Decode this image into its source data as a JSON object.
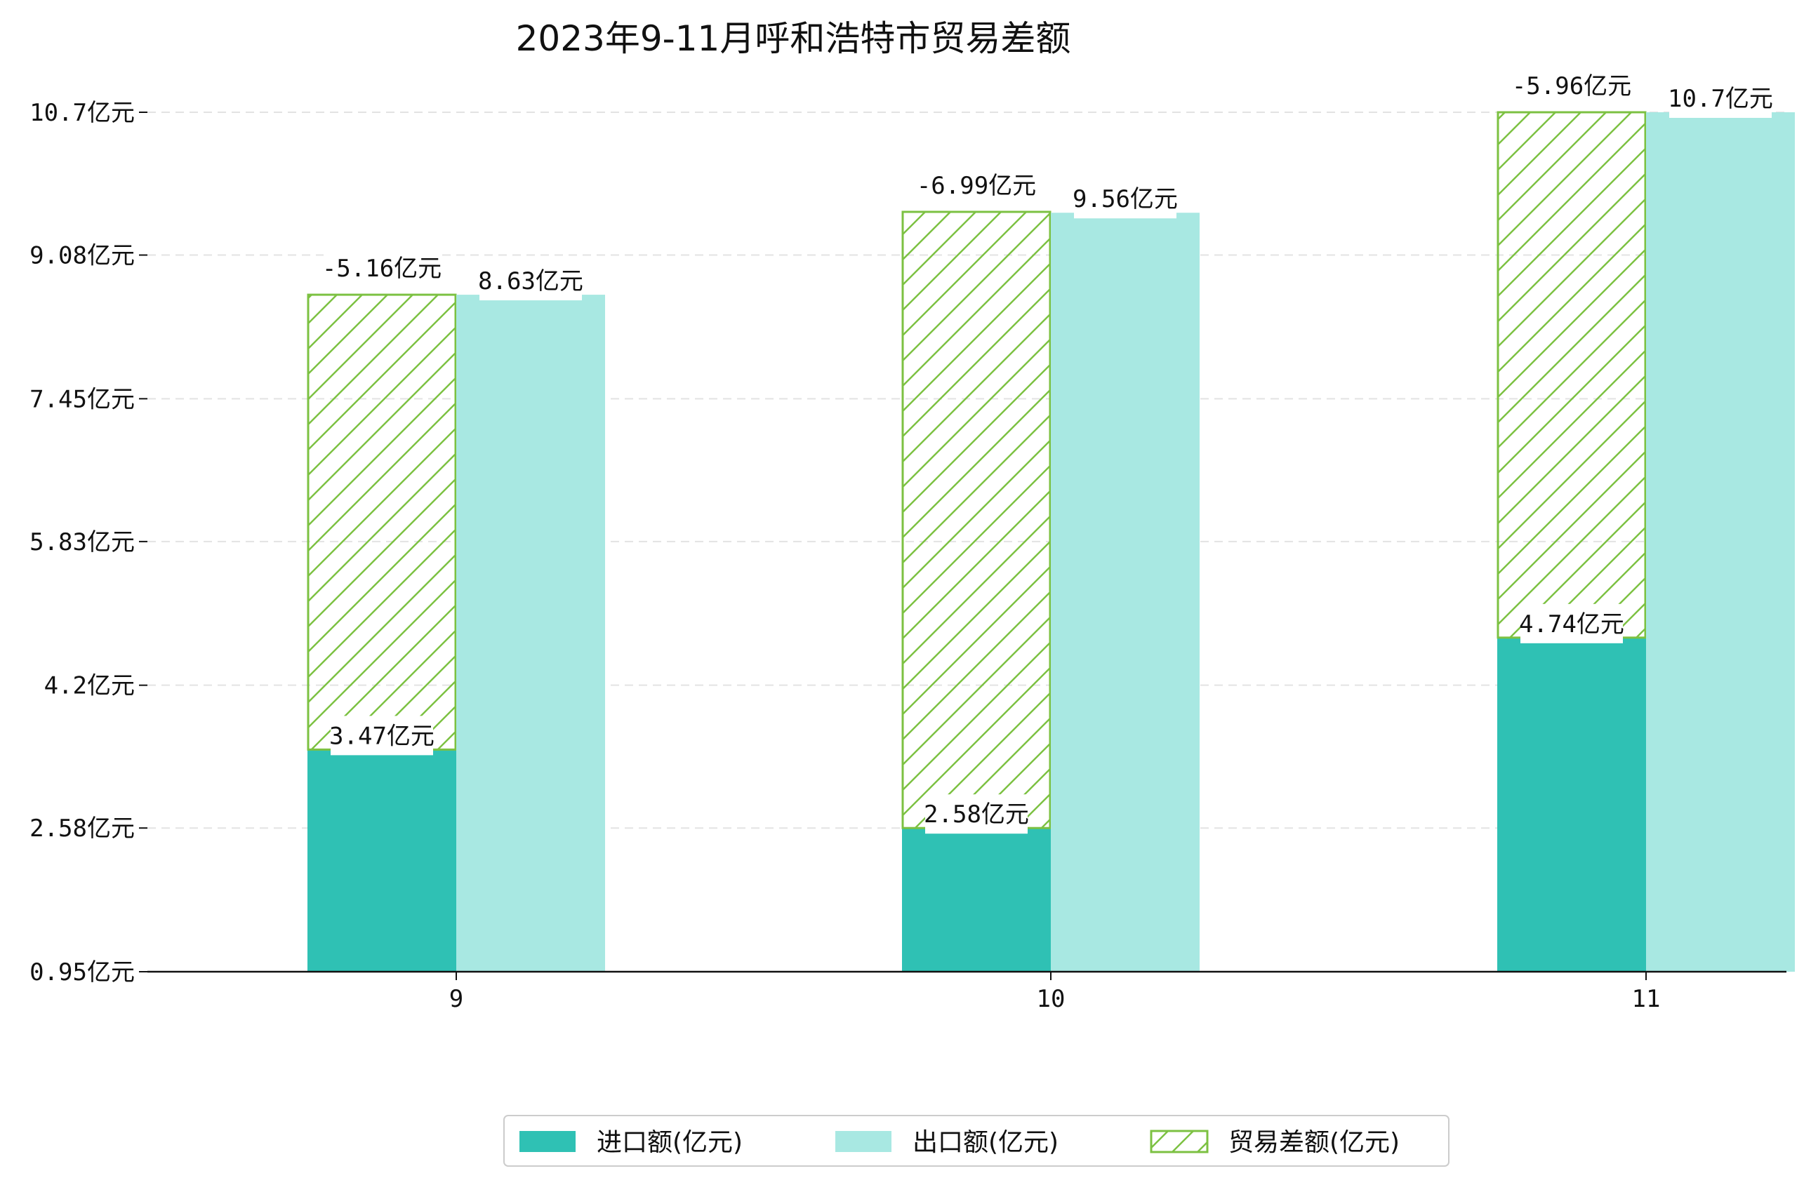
{
  "chart_data": {
    "type": "bar",
    "title": "2023年9-11月呼和浩特市贸易差额",
    "xlabel": "",
    "ylabel": "",
    "categories": [
      "9",
      "10",
      "11"
    ],
    "ylim": [
      0.95,
      10.7
    ],
    "yticks": [
      "0.95亿元",
      "2.58亿元",
      "4.2亿元",
      "5.83亿元",
      "7.45亿元",
      "9.08亿元",
      "10.7亿元"
    ],
    "ytick_values": [
      0.95,
      2.58,
      4.2,
      5.83,
      7.45,
      9.08,
      10.7
    ],
    "grid": "horizontal-dashed",
    "legend": "bottom-center",
    "series": [
      {
        "name": "进口额(亿元)",
        "values": [
          3.47,
          2.58,
          4.74
        ],
        "labels": [
          "3.47亿元",
          "2.58亿元",
          "4.74亿元"
        ],
        "color": "#2fc1b4"
      },
      {
        "name": "出口额(亿元)",
        "values": [
          8.63,
          9.56,
          10.7
        ],
        "labels": [
          "8.63亿元",
          "9.56亿元",
          "10.7亿元"
        ],
        "color": "#a8e8e2"
      },
      {
        "name": "贸易差额(亿元)",
        "values": [
          -5.16,
          -6.99,
          -5.96
        ],
        "labels": [
          "-5.16亿元",
          "-6.99亿元",
          "-5.96亿元"
        ],
        "color": "#7cc142",
        "pattern": "hatched"
      }
    ]
  }
}
